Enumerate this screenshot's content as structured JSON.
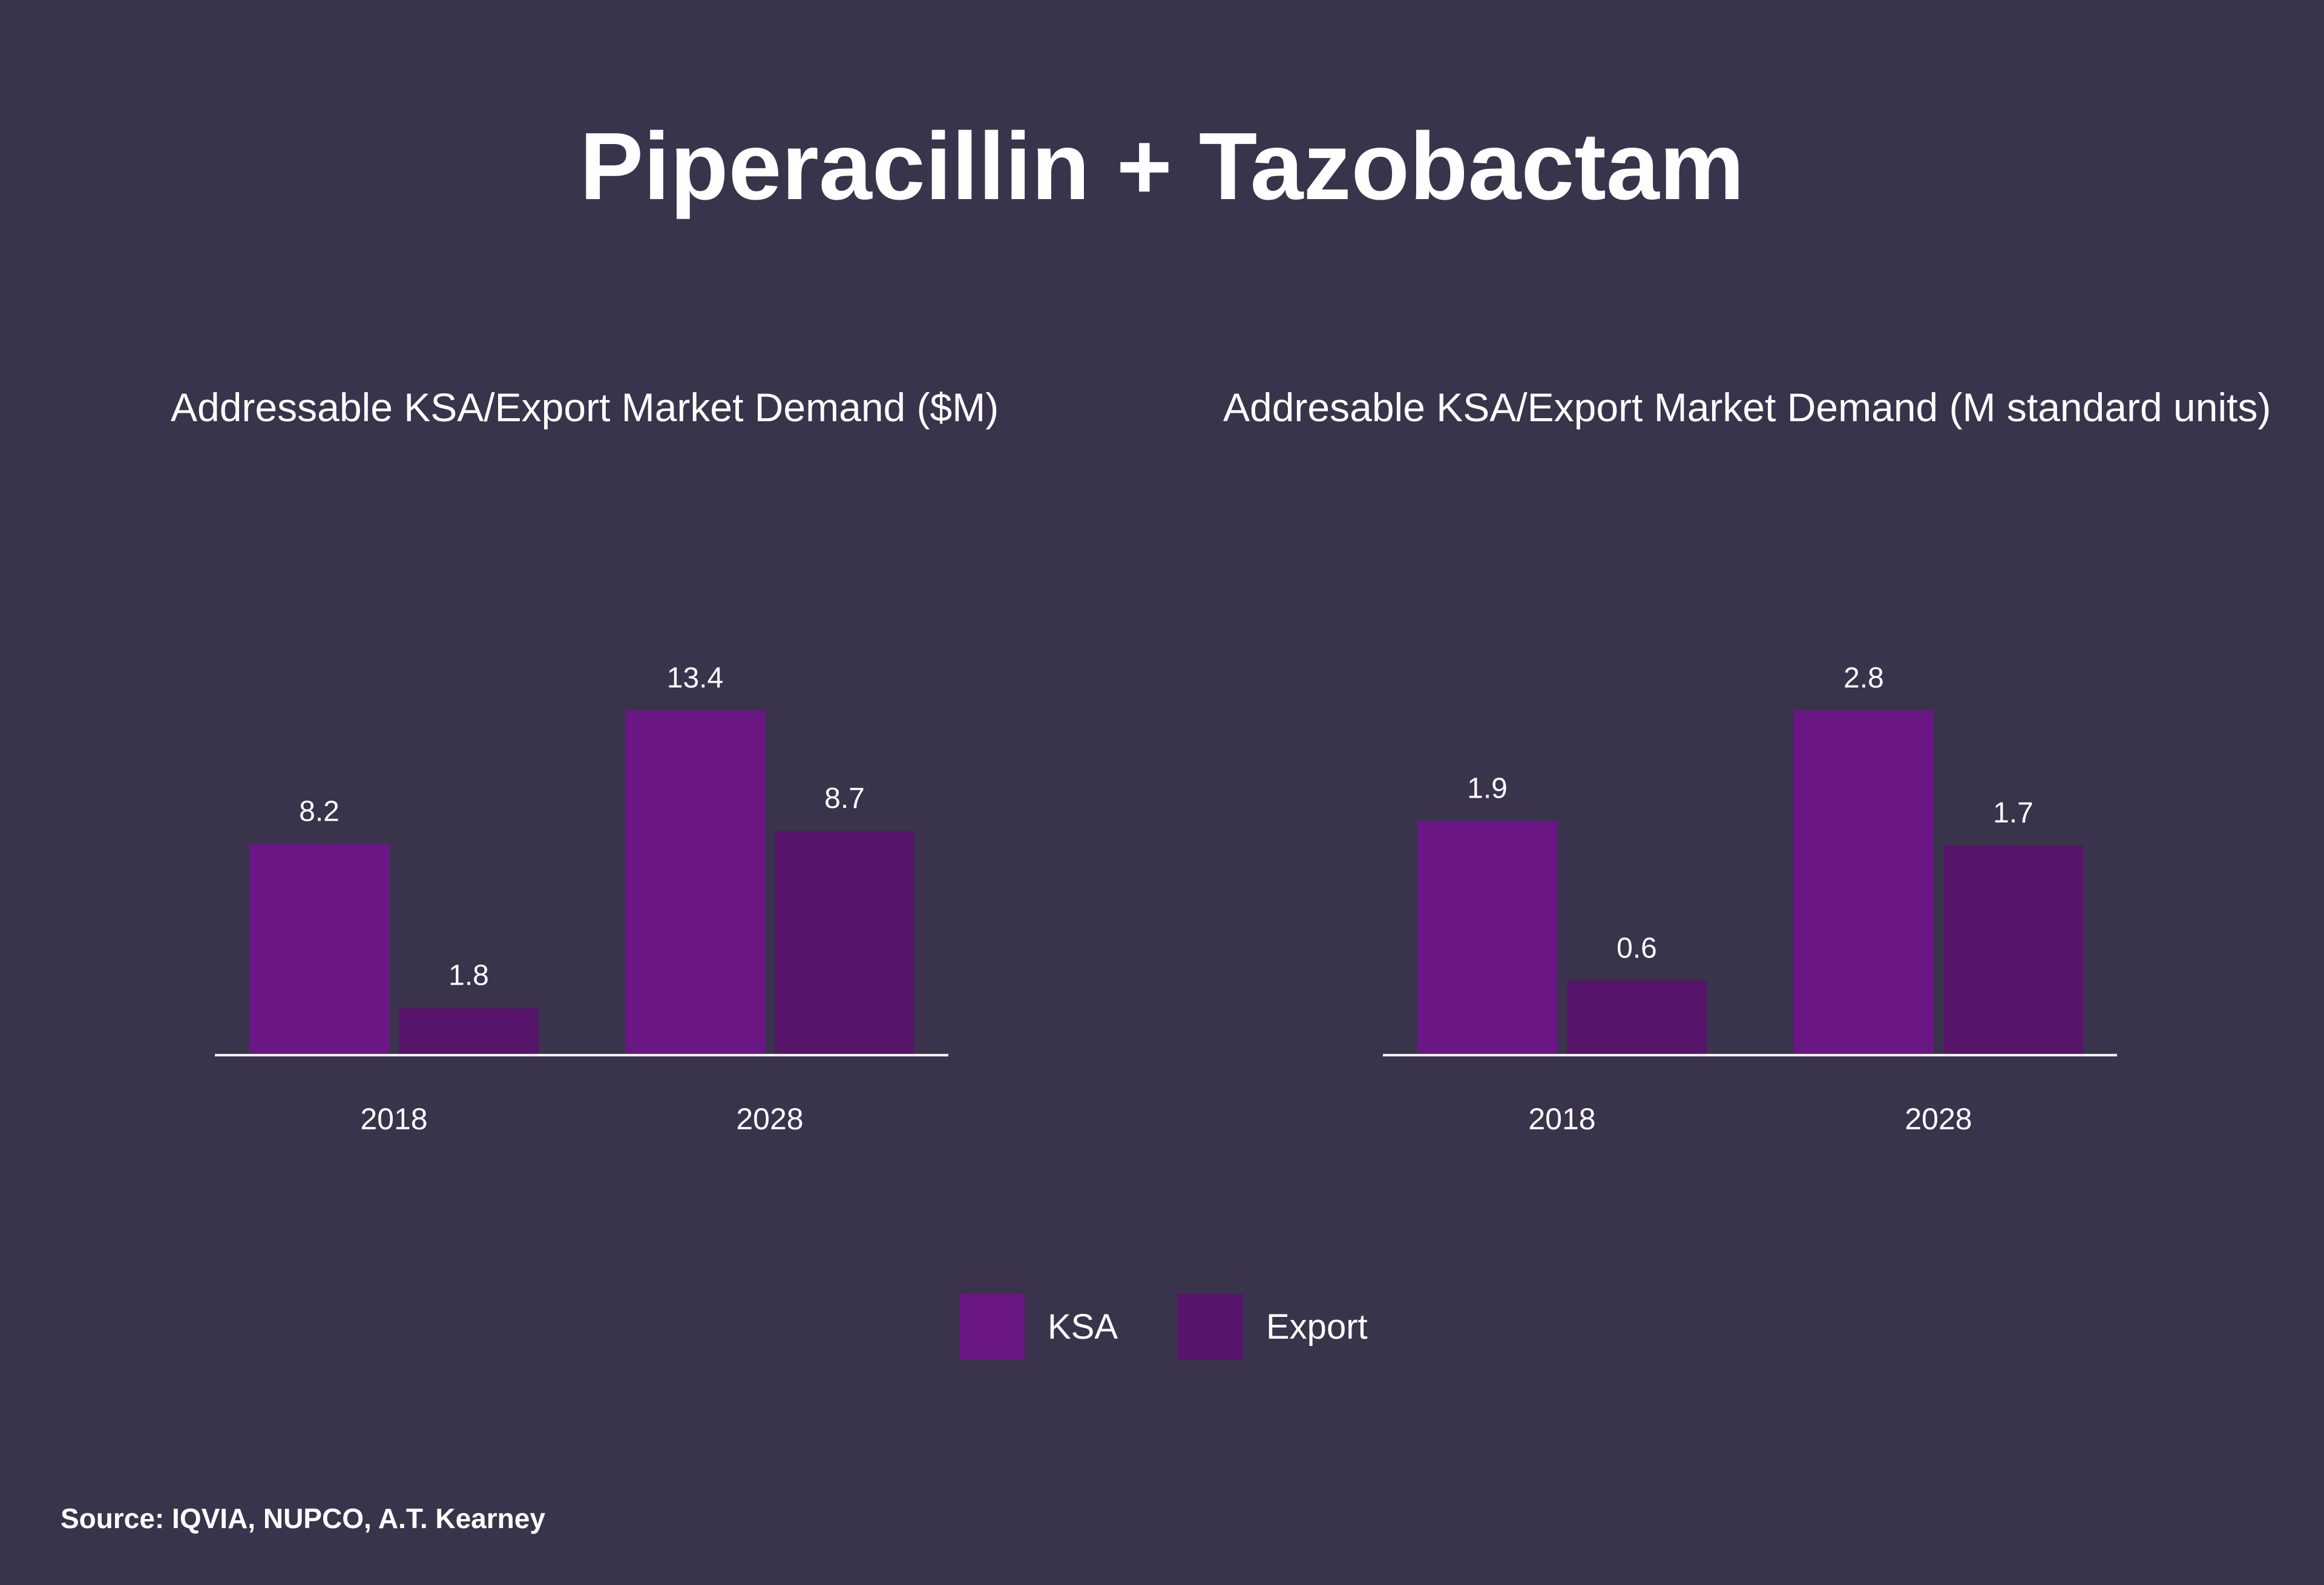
{
  "page_title": "Piperacillin + Tazobactam",
  "chart_data": [
    {
      "type": "bar",
      "title": "Addressable KSA/Export Market Demand ($M)",
      "categories": [
        "2018",
        "2028"
      ],
      "series": [
        {
          "name": "KSA",
          "values": [
            8.2,
            13.4
          ],
          "labels": [
            "8.2",
            "13.4"
          ]
        },
        {
          "name": "Export",
          "values": [
            1.8,
            8.7
          ],
          "labels": [
            "1.8",
            "8.7"
          ]
        }
      ],
      "xlabel": "",
      "ylabel": "",
      "ylim": [
        0,
        13.4
      ],
      "grid": false,
      "legend": "bottom-center"
    },
    {
      "type": "bar",
      "title": "Addresable KSA/Export Market Demand (M standard units)",
      "categories": [
        "2018",
        "2028"
      ],
      "series": [
        {
          "name": "KSA",
          "values": [
            1.9,
            2.8
          ],
          "labels": [
            "1.9",
            "2.8"
          ]
        },
        {
          "name": "Export",
          "values": [
            0.6,
            1.7
          ],
          "labels": [
            "0.6",
            "1.7"
          ]
        }
      ],
      "xlabel": "",
      "ylabel": "",
      "ylim": [
        0,
        2.8
      ],
      "grid": false,
      "legend": "bottom-center"
    }
  ],
  "legend": {
    "items": [
      {
        "label": "KSA",
        "color": "#6a1785"
      },
      {
        "label": "Export",
        "color": "#56146b"
      }
    ]
  },
  "colors": {
    "background": "#39344b",
    "axis": "#ffffff",
    "text": "#ffffff"
  },
  "source": "Source: IQVIA, NUPCO, A.T. Kearney"
}
